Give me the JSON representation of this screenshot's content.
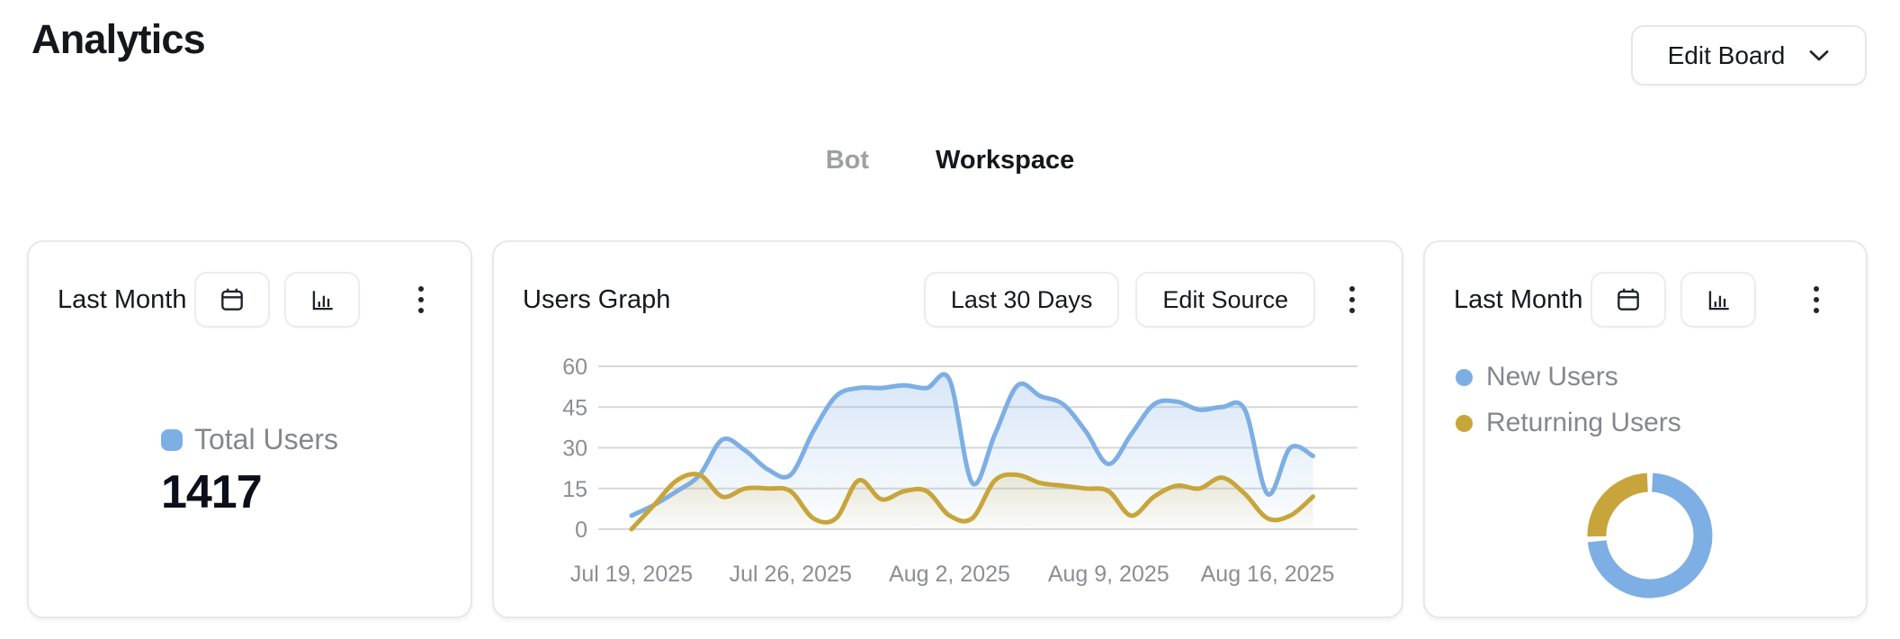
{
  "page": {
    "title": "Analytics"
  },
  "header": {
    "edit_board_label": "Edit Board"
  },
  "tabs": [
    {
      "label": "Bot",
      "active": false
    },
    {
      "label": "Workspace",
      "active": true
    }
  ],
  "colors": {
    "blue": "#7DAEE4",
    "gold": "#C7A53A",
    "grid": "#D6D7DA",
    "axis_text": "#8C8E92",
    "legend_text": "#85878C"
  },
  "cards": {
    "total_users": {
      "title": "Last Month U",
      "legend_label": "Total Users",
      "value": "1417"
    },
    "users_graph": {
      "title": "Users Graph",
      "range_button_label": "Last 30 Days",
      "edit_source_button_label": "Edit Source"
    },
    "user_split": {
      "title": "Last Month U",
      "legend": [
        {
          "label": "New Users",
          "color": "#7DAEE4"
        },
        {
          "label": "Returning Users",
          "color": "#C7A53A"
        }
      ]
    }
  },
  "chart_data": [
    {
      "type": "area",
      "title": "Users Graph",
      "x_tick_labels": [
        "Jul 19, 2025",
        "Jul 26, 2025",
        "Aug 2, 2025",
        "Aug 9, 2025",
        "Aug 16, 2025"
      ],
      "x_points_per_day": 1,
      "y_ticks": [
        0,
        15,
        30,
        45,
        60
      ],
      "ylim": [
        0,
        60
      ],
      "grid": true,
      "legend_position": "none",
      "series": [
        {
          "name": "New Users",
          "color": "#7DAEE4",
          "values": [
            5,
            9,
            14,
            20,
            33,
            29,
            22,
            20,
            36,
            49,
            52,
            52,
            53,
            52,
            55,
            17,
            35,
            53,
            49,
            46,
            36,
            24,
            35,
            46,
            47,
            44,
            45,
            44,
            13,
            30,
            27
          ]
        },
        {
          "name": "Returning Users",
          "color": "#C7A53A",
          "values": [
            0,
            9,
            18,
            20,
            12,
            15,
            15,
            14,
            4,
            4,
            18,
            11,
            14,
            14,
            5,
            4,
            18,
            20,
            17,
            16,
            15,
            14,
            5,
            12,
            16,
            15,
            19,
            13,
            4,
            5,
            12
          ]
        }
      ]
    },
    {
      "type": "donut",
      "legend_position": "top-left",
      "slices": [
        {
          "label": "New Users",
          "color": "#7DAEE4",
          "percent": 74
        },
        {
          "label": "Returning Users",
          "color": "#C7A53A",
          "percent": 26
        }
      ]
    }
  ]
}
